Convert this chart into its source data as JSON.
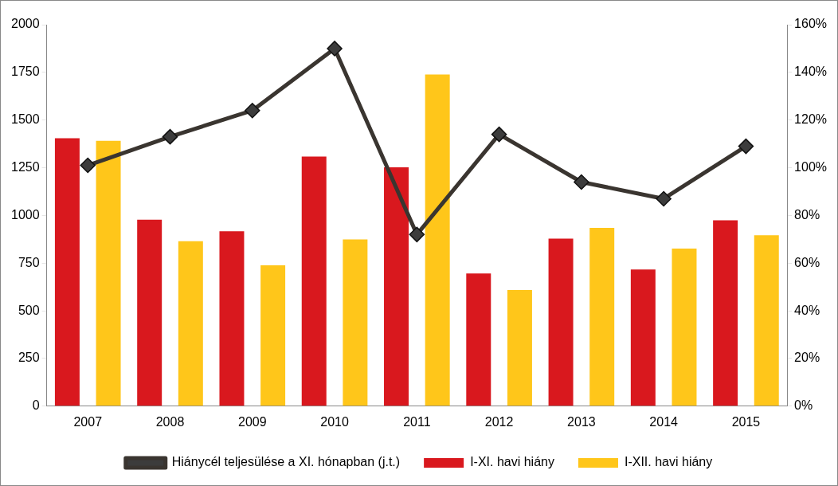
{
  "chart_data": {
    "type": "bar",
    "categories": [
      "2007",
      "2008",
      "2009",
      "2010",
      "2011",
      "2012",
      "2013",
      "2014",
      "2015"
    ],
    "series": [
      {
        "name": "I-XI. havi hiány",
        "color": "#d9181e",
        "values": [
          1405,
          978,
          917,
          1309,
          1252,
          696,
          878,
          717,
          974
        ]
      },
      {
        "name": "I-XII. havi hiány",
        "color": "#ffc61a",
        "values": [
          1391,
          865,
          739,
          874,
          1739,
          609,
          935,
          826,
          896
        ]
      },
      {
        "name": "Hiánycél teljesülése a XI. hónapban (j.t.)",
        "type": "line",
        "axis": "y2",
        "color": "#3a3530",
        "marker": "diamond",
        "values": [
          101,
          113,
          124,
          150,
          72,
          114,
          94,
          87,
          109
        ]
      }
    ],
    "ylim": [
      0,
      2000
    ],
    "yticks": [
      0,
      250,
      500,
      750,
      1000,
      1250,
      1500,
      1750,
      2000
    ],
    "y2lim": [
      0,
      160
    ],
    "y2ticks": [
      {
        "value": 0,
        "label": "0%"
      },
      {
        "value": 20,
        "label": "20%"
      },
      {
        "value": 40,
        "label": "40%"
      },
      {
        "value": 60,
        "label": "60%"
      },
      {
        "value": 80,
        "label": "80%"
      },
      {
        "value": 100,
        "label": "100%"
      },
      {
        "value": 120,
        "label": "120%"
      },
      {
        "value": 140,
        "label": "140%"
      },
      {
        "value": 160,
        "label": "160%"
      }
    ],
    "grid": false,
    "legend": "bottom"
  }
}
